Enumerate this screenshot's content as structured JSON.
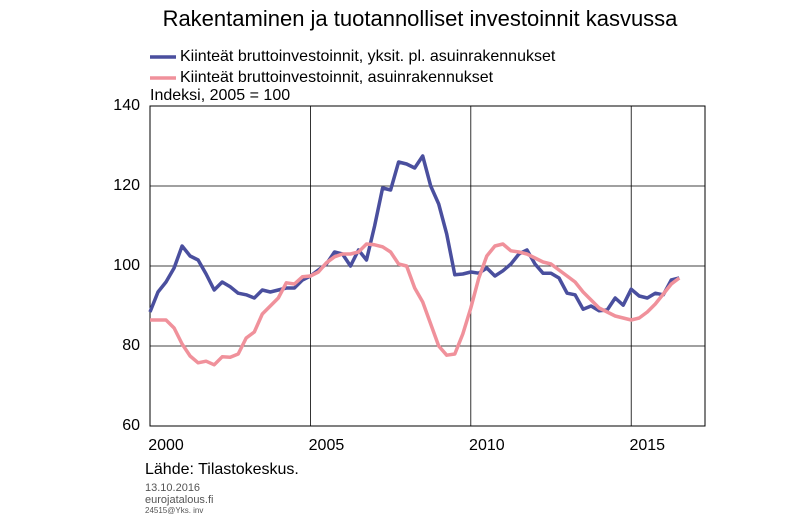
{
  "chart_data": {
    "type": "line",
    "title": "Rakentaminen ja tuotannolliset investoinnit kasvussa",
    "y_label": "Indeksi, 2005 = 100",
    "source": "Lähde: Tilastokeskus.",
    "footer": [
      "13.10.2016",
      "eurojatalous.fi",
      "24515@Yks. inv"
    ],
    "x": [
      2000,
      2000.25,
      2000.5,
      2000.75,
      2001,
      2001.25,
      2001.5,
      2001.75,
      2002,
      2002.25,
      2002.5,
      2002.75,
      2003,
      2003.25,
      2003.5,
      2003.75,
      2004,
      2004.25,
      2004.5,
      2004.75,
      2005,
      2005.25,
      2005.5,
      2005.75,
      2006,
      2006.25,
      2006.5,
      2006.75,
      2007,
      2007.25,
      2007.5,
      2007.75,
      2008,
      2008.25,
      2008.5,
      2008.75,
      2009,
      2009.25,
      2009.5,
      2009.75,
      2010,
      2010.25,
      2010.5,
      2010.75,
      2011,
      2011.25,
      2011.5,
      2011.75,
      2012,
      2012.25,
      2012.5,
      2012.75,
      2013,
      2013.25,
      2013.5,
      2013.75,
      2014,
      2014.25,
      2014.5,
      2014.75,
      2015,
      2015.25,
      2015.5,
      2015.75,
      2016,
      2016.25,
      2016.5
    ],
    "series": [
      {
        "name": "Kiinteät bruttoinvestoinnit, yksit. pl. asuinrakennukset",
        "color": "#4a4f9e",
        "values": [
          88.5,
          93.5,
          96,
          99.5,
          105,
          102.5,
          101.5,
          98,
          94,
          96,
          94.8,
          93.2,
          92.8,
          92,
          94,
          93.5,
          94,
          94.5,
          94.5,
          96.5,
          97.5,
          99,
          100.5,
          103.5,
          103,
          100,
          104,
          101.5,
          110,
          119.5,
          119,
          126,
          125.5,
          124.5,
          127.5,
          120,
          115.5,
          108,
          97.8,
          98,
          98.5,
          98.2,
          99.5,
          97.5,
          98.8,
          100.5,
          103,
          104,
          100.5,
          98.2,
          98.2,
          97,
          93.2,
          92.8,
          89.2,
          90,
          88.8,
          89,
          92,
          90.2,
          94.2,
          92.5,
          92,
          93.2,
          92.8,
          96.5,
          97
        ]
      },
      {
        "name": "Kiinteät bruttoinvestoinnit, asuinrakennukset",
        "color": "#f0919b",
        "values": [
          86.5,
          86.5,
          86.5,
          84.5,
          80.5,
          77.5,
          75.8,
          76.2,
          75.3,
          77.3,
          77.2,
          78,
          82,
          83.5,
          88,
          90,
          92,
          95.8,
          95.5,
          97.3,
          97.5,
          98.5,
          100.8,
          102.3,
          103,
          103,
          103.5,
          105.5,
          105.3,
          104.8,
          103.5,
          100.5,
          100,
          94.5,
          91,
          85.5,
          80,
          77.7,
          78,
          83,
          89.5,
          97,
          102.5,
          105,
          105.5,
          103.8,
          103.5,
          103,
          102,
          101,
          100.5,
          99,
          97.5,
          96,
          93.5,
          91.5,
          89.5,
          88.5,
          87.5,
          87,
          86.5,
          87,
          88.5,
          90.5,
          93,
          95.5,
          97
        ]
      }
    ],
    "xlim": [
      2000,
      2017.3
    ],
    "xticks": [
      2000,
      2005,
      2010,
      2015
    ],
    "ylim": [
      60,
      140
    ],
    "yticks": [
      60,
      80,
      100,
      120,
      140
    ],
    "grid": true
  }
}
